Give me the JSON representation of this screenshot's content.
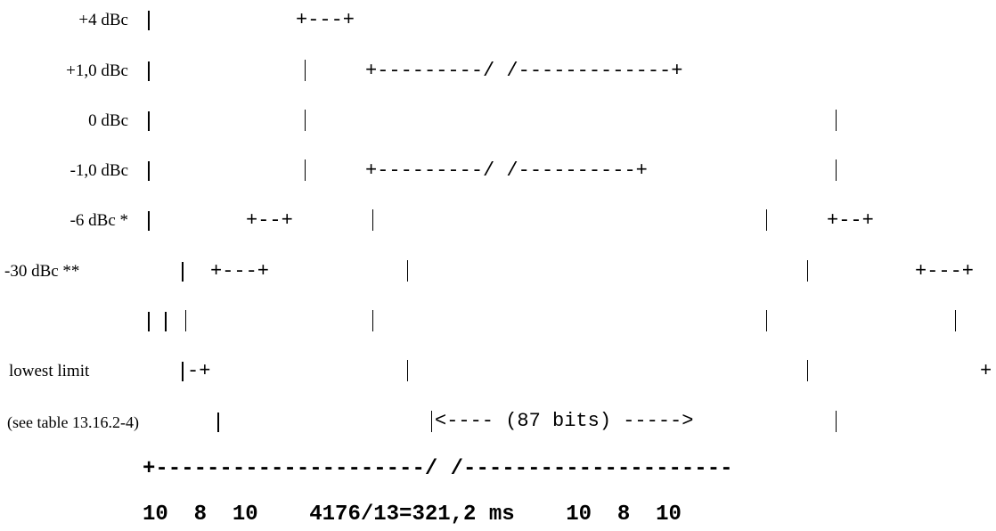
{
  "labels": {
    "plus4": "+4 dBc",
    "plus1": "+1,0 dBc",
    "zero": "0 dBc",
    "minus1": "-1,0 dBc",
    "minus6": "-6 dBc *",
    "minus30": "-30 dBc **",
    "lowest": "lowest limit",
    "see_table": "(see table 13.16.2-4)"
  },
  "mask": {
    "r_plus4": "+---+",
    "r_plus1": "+---------/ /-------------+",
    "r_minus1": "+---------/ /----------+",
    "r_minus6_left": "+--+",
    "r_minus6_right": "+--+",
    "r_minus30_left": "+---+",
    "r_minus30_right": "+---+",
    "r_lowest_left": "-+",
    "r_lowest_right": "+",
    "bits": "<---- (87 bits) ----->"
  },
  "timeline": {
    "line": "+---------------------/ /---------------------",
    "durations": "10  8  10    4176/13=321,2 ms    10  8  10"
  }
}
